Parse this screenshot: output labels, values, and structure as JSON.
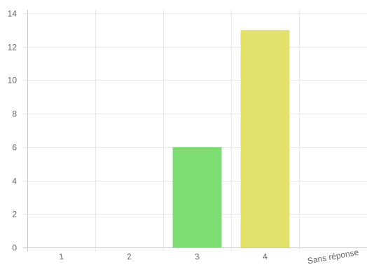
{
  "chart_data": {
    "type": "bar",
    "title": "",
    "xlabel": "",
    "ylabel": "",
    "categories": [
      "1",
      "2",
      "3",
      "4",
      "Sans réponse"
    ],
    "values": [
      0,
      0,
      6,
      13,
      0
    ],
    "colors": [
      "#7ddc72",
      "#7ddc72",
      "#7ddc72",
      "#e1e16b",
      "#7ddc72"
    ],
    "ylim": [
      0,
      14
    ],
    "yticks": [
      0,
      2,
      4,
      6,
      8,
      10,
      12,
      14
    ],
    "grid": true,
    "legend": "none"
  }
}
